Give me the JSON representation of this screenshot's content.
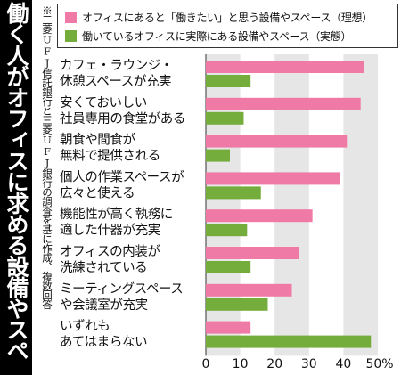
{
  "title": "働く人がオフィスに求める設備やスペース",
  "note": "※三菱UFJ信託銀行と三菱UFJ銀行の調査を基に作成、複数回答",
  "colors": {
    "ideal": "#f07aa6",
    "actual": "#74ad3c",
    "band": "#e6e6e6"
  },
  "chart_data": {
    "type": "bar",
    "orientation": "horizontal",
    "categories": [
      [
        "カフェ・ラウンジ・",
        "休憩スペースが充実"
      ],
      [
        "安くておいしい",
        "社員専用の食堂がある"
      ],
      [
        "朝食や間食が",
        "無料で提供される"
      ],
      [
        "個人の作業スペースが",
        "広々と使える"
      ],
      [
        "機能性が高く執務に",
        "適した什器が充実"
      ],
      [
        "オフィスの内装が",
        "洗練されている"
      ],
      [
        "ミーティングスペース",
        "や会議室が充実"
      ],
      [
        "いずれも",
        "あてはまらない"
      ]
    ],
    "series": [
      {
        "name": "オフィスにあると「働きたい」と思う設備やスペース（理想）",
        "values": [
          46,
          45,
          41,
          39,
          31,
          27,
          25,
          13
        ]
      },
      {
        "name": "働いているオフィスに実際にある設備やスペース（実態）",
        "values": [
          13,
          11,
          7,
          16,
          12,
          13,
          18,
          48
        ]
      }
    ],
    "xlim": [
      0,
      50
    ],
    "xticks": [
      0,
      10,
      20,
      30,
      40
    ],
    "last_tick_label": "50%",
    "legend": "top"
  }
}
